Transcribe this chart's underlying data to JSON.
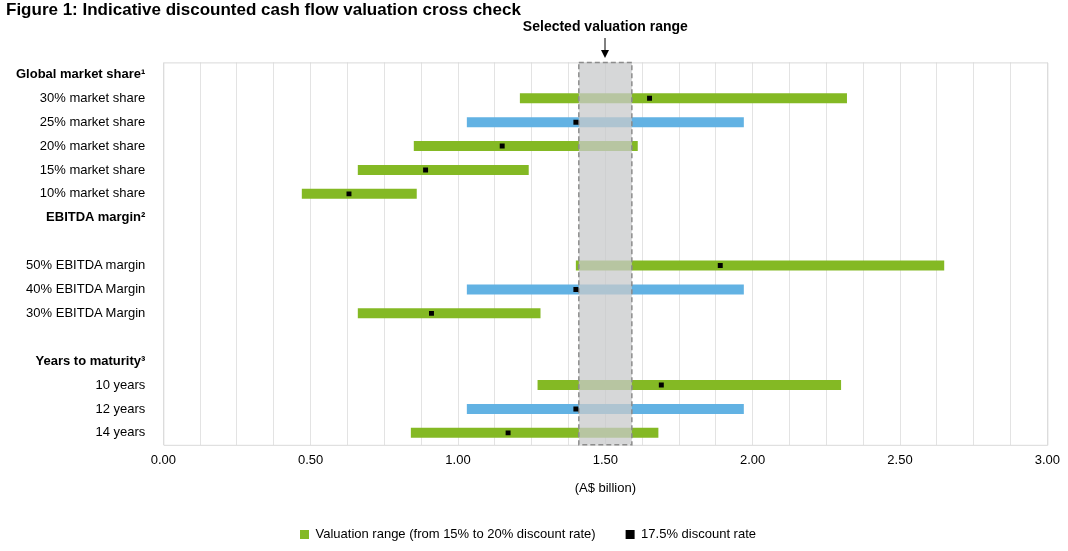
{
  "chart_data": {
    "type": "bar",
    "title": "Figure 1: Indicative discounted cash flow valuation cross check",
    "orientation": "horizontal",
    "xlabel": "(A$ billion)",
    "categories": [
      "Global market share¹",
      "30% market share",
      "25% market share",
      "20% market share",
      "15% market share",
      "10% market share",
      "EBITDA margin²",
      null,
      "50% EBITDA margin",
      "40% EBITDA Margin",
      "30% EBITDA Margin",
      null,
      "Years to maturity³",
      "10 years",
      "12 years",
      "14 years"
    ],
    "series": [
      {
        "name": "Valuation range (from 15% to 20% discount rate)",
        "color": "#84b924",
        "colors": [
          null,
          "#84b924",
          "#62b2e3",
          "#84b924",
          "#84b924",
          "#84b924",
          null,
          null,
          "#84b924",
          "#62b2e3",
          "#84b924",
          null,
          null,
          "#84b924",
          "#62b2e3",
          "#84b924"
        ],
        "base": [
          null,
          1.21,
          1.03,
          0.85,
          0.66,
          0.47,
          null,
          null,
          1.4,
          1.03,
          0.66,
          null,
          null,
          1.27,
          1.03,
          0.84
        ],
        "values": [
          null,
          1.11,
          0.94,
          0.76,
          0.58,
          0.39,
          null,
          null,
          1.25,
          0.94,
          0.62,
          null,
          null,
          1.03,
          0.94,
          0.84
        ]
      },
      {
        "type": "scatter",
        "name": "17.5% discount rate",
        "color": "#000000",
        "marker": "square",
        "values": [
          null,
          1.65,
          1.4,
          1.15,
          0.89,
          0.63,
          null,
          null,
          1.89,
          1.4,
          0.91,
          null,
          null,
          1.69,
          1.4,
          1.17
        ]
      }
    ],
    "bands": [
      {
        "axis": "x",
        "from": 1.41,
        "to": 1.59,
        "label": "Selected valuation range",
        "color": "#c8c9cb"
      }
    ],
    "xlim": [
      0,
      3
    ],
    "xticks": [
      {
        "value": 0,
        "label": "0.00"
      },
      {
        "value": 0.125,
        "label": null
      },
      {
        "value": 0.25,
        "label": null
      },
      {
        "value": 0.375,
        "label": null
      },
      {
        "value": 0.5,
        "label": "0.50"
      },
      {
        "value": 0.625,
        "label": null
      },
      {
        "value": 0.75,
        "label": null
      },
      {
        "value": 0.875,
        "label": null
      },
      {
        "value": 1,
        "label": "1.00"
      },
      {
        "value": 1.125,
        "label": null
      },
      {
        "value": 1.25,
        "label": null
      },
      {
        "value": 1.375,
        "label": null
      },
      {
        "value": 1.5,
        "label": "1.50"
      },
      {
        "value": 1.625,
        "label": null
      },
      {
        "value": 1.75,
        "label": null
      },
      {
        "value": 1.875,
        "label": null
      },
      {
        "value": 2,
        "label": "2.00"
      },
      {
        "value": 2.125,
        "label": null
      },
      {
        "value": 2.25,
        "label": null
      },
      {
        "value": 2.375,
        "label": null
      },
      {
        "value": 2.5,
        "label": "2.50"
      },
      {
        "value": 2.625,
        "label": null
      },
      {
        "value": 2.75,
        "label": null
      },
      {
        "value": 2.875,
        "label": null
      },
      {
        "value": 3,
        "label": "3.00"
      }
    ],
    "grid": "x",
    "legend": "bottom"
  }
}
